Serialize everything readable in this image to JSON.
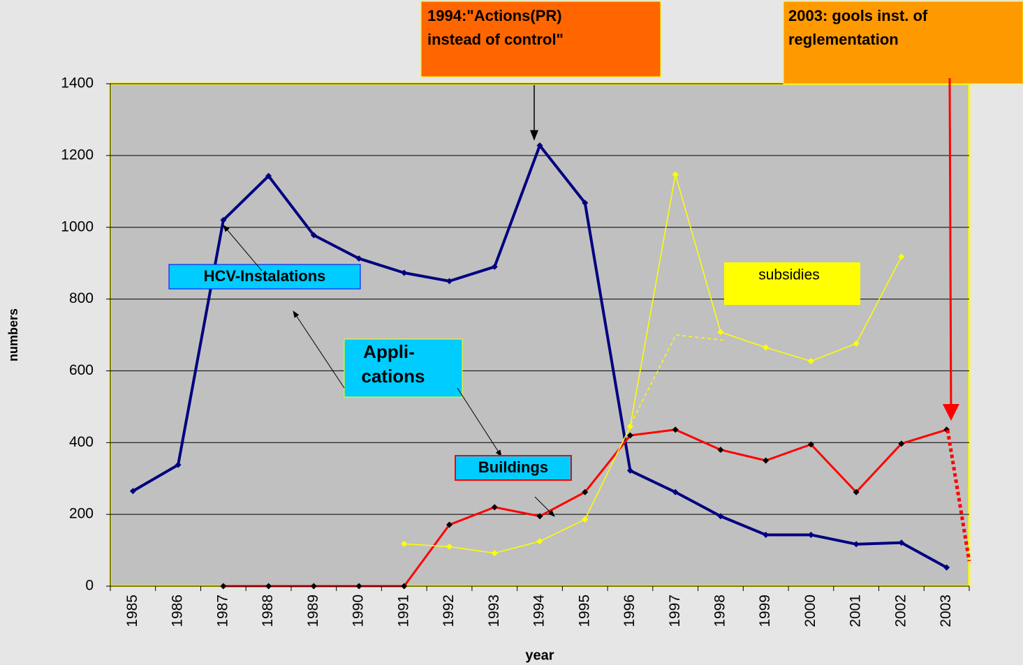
{
  "chart_data": {
    "type": "line",
    "ylabel": "numbers",
    "xlabel": "year",
    "categories": [
      "1985",
      "1986",
      "1987",
      "1988",
      "1989",
      "1990",
      "1991",
      "1992",
      "1993",
      "1994",
      "1995",
      "1996",
      "1997",
      "1998",
      "1999",
      "2000",
      "2001",
      "2002",
      "2003"
    ],
    "series": [
      {
        "name": "HCV-Instalations",
        "color": "#000080",
        "marker_color": "#000080",
        "width": 4,
        "values": [
          265,
          338,
          1020,
          1143,
          978,
          913,
          873,
          850,
          890,
          1228,
          1068,
          322,
          262,
          195,
          143,
          143,
          117,
          121,
          52
        ]
      },
      {
        "name": "Buildings",
        "color": "#ff0000",
        "marker_color": "#000000",
        "width": 3,
        "values": [
          null,
          null,
          0,
          0,
          0,
          0,
          0,
          171,
          220,
          195,
          262,
          420,
          436,
          380,
          350,
          395,
          262,
          397,
          436
        ]
      },
      {
        "name": "subsidies",
        "color": "#ffff00",
        "marker_color": "#ffff00",
        "width": 1.5,
        "values": [
          null,
          null,
          null,
          null,
          null,
          null,
          118,
          110,
          92,
          125,
          186,
          445,
          1147,
          708,
          665,
          627,
          676,
          918,
          null
        ]
      }
    ],
    "annotations": [
      {
        "lines": [
          "1994:\"Actions(PR)",
          "instead of control\""
        ]
      },
      {
        "lines": [
          "2003: gools inst. of",
          "reglementation"
        ]
      },
      {
        "lines": [
          "Appli-",
          "cations"
        ]
      }
    ],
    "ylim": [
      0,
      1400
    ],
    "yticks": [
      0,
      200,
      400,
      600,
      800,
      1000,
      1200,
      1400
    ],
    "grid": true
  }
}
